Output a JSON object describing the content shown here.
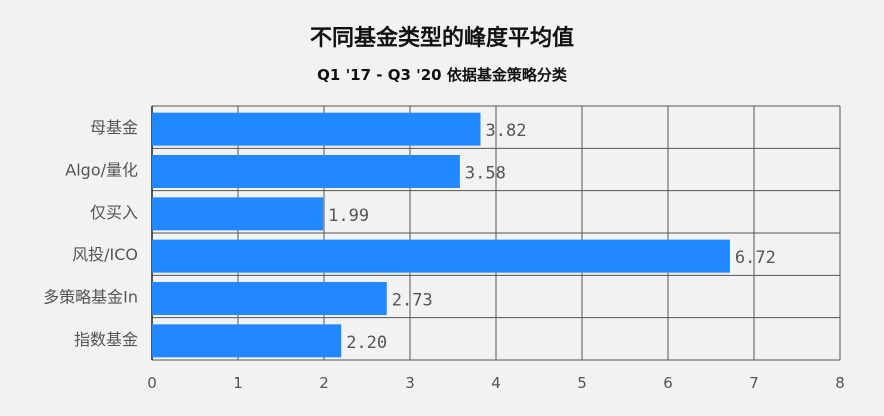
{
  "chart_data": {
    "type": "bar",
    "orientation": "horizontal",
    "title": "不同基金类型的峰度平均值",
    "subtitle": "Q1 '17 - Q3 '20 依据基金策略分类",
    "categories": [
      "母基金",
      "Algo/量化",
      "仅买入",
      "风投/ICO",
      "多策略基金In",
      "指数基金"
    ],
    "values": [
      3.82,
      3.58,
      1.99,
      6.72,
      2.73,
      2.2
    ],
    "value_labels": [
      "3.82",
      "3.58",
      "1.99",
      "6.72",
      "2.73",
      "2.20"
    ],
    "xlim": [
      0,
      8
    ],
    "x_ticks": [
      "0",
      "1",
      "2",
      "3",
      "4",
      "5",
      "6",
      "7",
      "8"
    ],
    "grid": true,
    "bar_color": "#2288ff",
    "grid_color": "#555555"
  }
}
